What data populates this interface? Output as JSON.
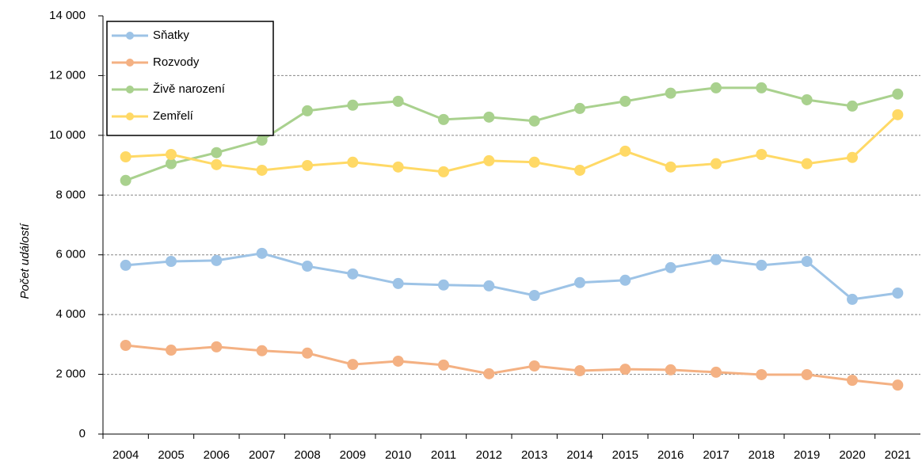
{
  "chart_data": {
    "type": "line",
    "y_label": "Počet událostí",
    "categories": [
      "2004",
      "2005",
      "2006",
      "2007",
      "2008",
      "2009",
      "2010",
      "2011",
      "2012",
      "2013",
      "2014",
      "2015",
      "2016",
      "2017",
      "2018",
      "2019",
      "2020",
      "2021"
    ],
    "series": [
      {
        "name": "Sňatky",
        "color": "#9dc3e6",
        "values": [
          5650,
          5780,
          5810,
          6050,
          5620,
          5360,
          5040,
          4990,
          4960,
          4640,
          5070,
          5150,
          5570,
          5840,
          5650,
          5780,
          4510,
          4720
        ]
      },
      {
        "name": "Rozvody",
        "color": "#f4b183",
        "values": [
          2970,
          2810,
          2920,
          2790,
          2710,
          2330,
          2440,
          2310,
          2020,
          2280,
          2120,
          2170,
          2150,
          2070,
          1990,
          1990,
          1800,
          1640
        ]
      },
      {
        "name": "Živě narození",
        "color": "#a9d18e",
        "values": [
          8490,
          9050,
          9420,
          9840,
          10820,
          11010,
          11140,
          10530,
          10610,
          10480,
          10900,
          11140,
          11410,
          11590,
          11590,
          11190,
          10980,
          11380
        ]
      },
      {
        "name": "Zemřelí",
        "color": "#ffd966",
        "values": [
          9280,
          9360,
          9020,
          8830,
          8990,
          9100,
          8940,
          8780,
          9150,
          9100,
          8830,
          9470,
          8940,
          9050,
          9360,
          9050,
          9260,
          10690
        ]
      }
    ],
    "ylim": [
      0,
      14000
    ],
    "yticks": [
      0,
      {
        "value": 2000,
        "label": "2 000"
      },
      {
        "value": 4000,
        "label": "4 000"
      },
      {
        "value": 6000,
        "label": "6 000"
      },
      {
        "value": 8000,
        "label": "8 000"
      },
      {
        "value": 10000,
        "label": "10 000"
      },
      {
        "value": 12000,
        "label": "12 000"
      },
      {
        "value": 14000,
        "label": "14 000"
      }
    ],
    "grid": true,
    "legend": "top-left"
  }
}
